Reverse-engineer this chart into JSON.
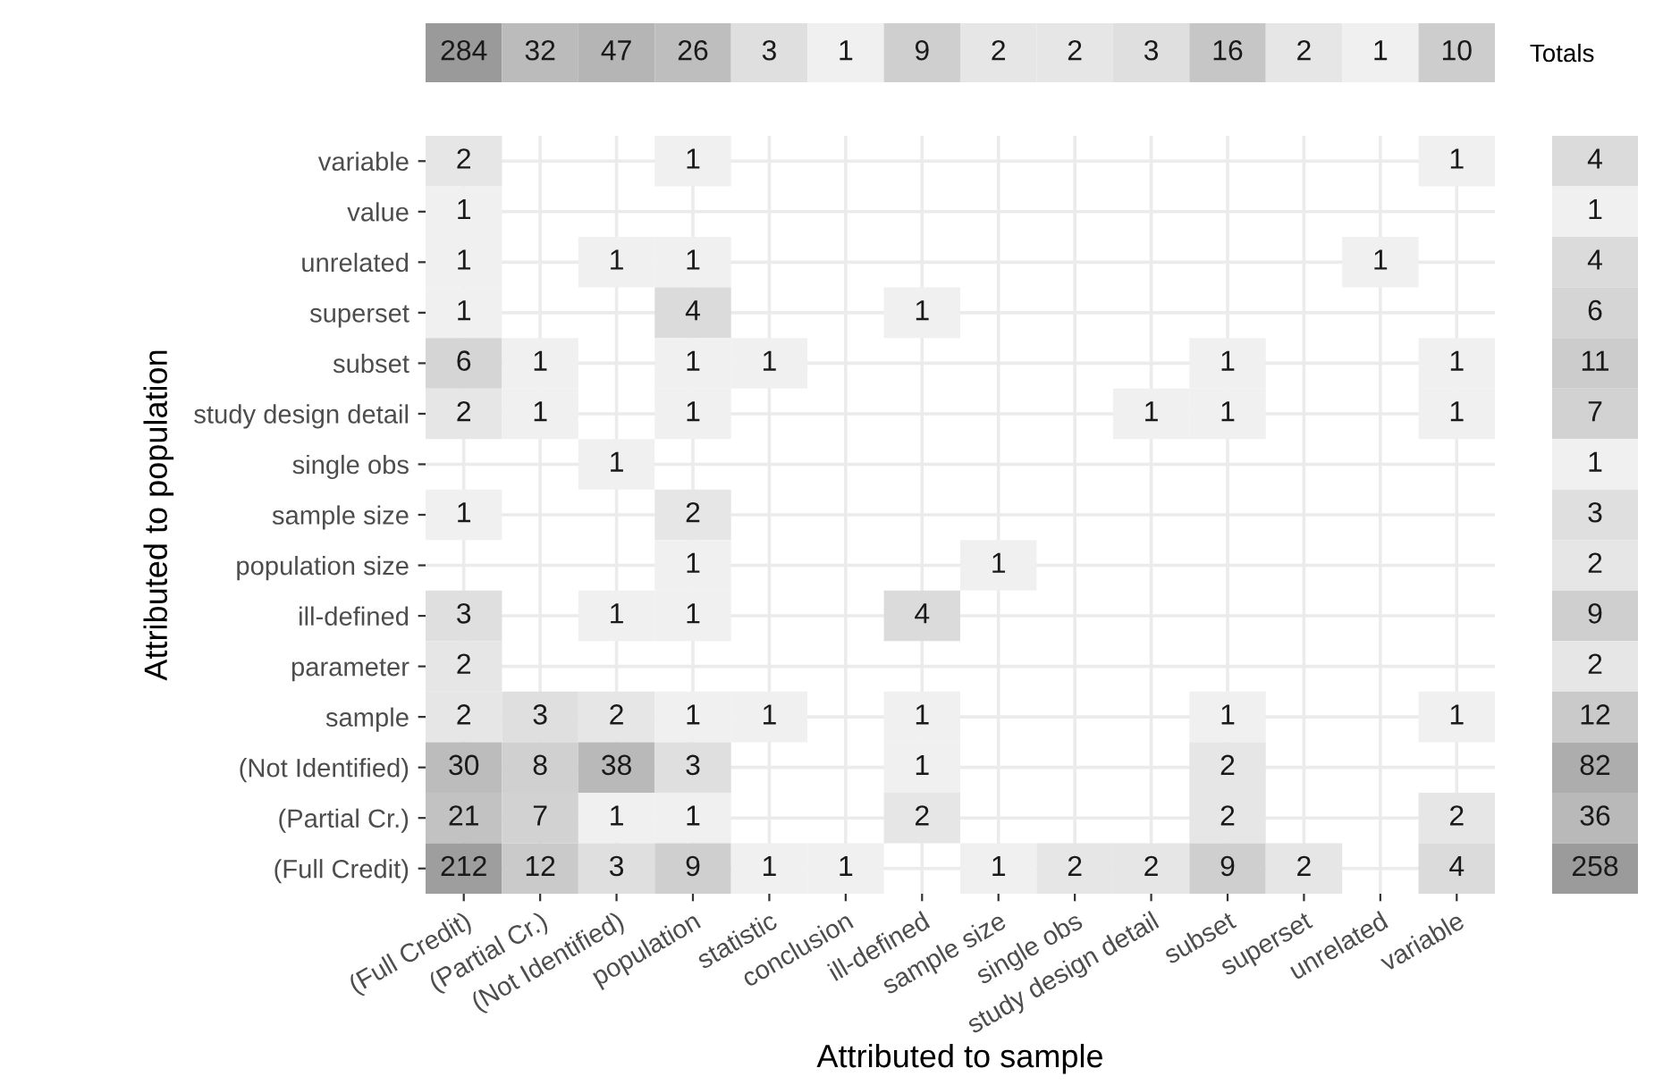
{
  "chart_data": [
    {
      "type": "heatmap",
      "xlabel": "Attributed to sample",
      "ylabel": "Attributed to population",
      "grid": true,
      "data_labels": true,
      "categories": [
        "(Full Credit)",
        "(Partial Cr.)",
        "(Not Identified)",
        "population",
        "statistic",
        "conclusion",
        "ill-defined",
        "sample size",
        "single obs",
        "study design detail",
        "subset",
        "superset",
        "unrelated",
        "variable"
      ],
      "y_categories": [
        "variable",
        "value",
        "unrelated",
        "superset",
        "subset",
        "study design detail",
        "single obs",
        "sample size",
        "population size",
        "ill-defined",
        "parameter",
        "sample",
        "(Not Identified)",
        "(Partial Cr.)",
        "(Full Credit)"
      ],
      "cells": [
        [
          2,
          null,
          null,
          1,
          null,
          null,
          null,
          null,
          null,
          null,
          null,
          null,
          null,
          1
        ],
        [
          1,
          null,
          null,
          null,
          null,
          null,
          null,
          null,
          null,
          null,
          null,
          null,
          null,
          null
        ],
        [
          1,
          null,
          1,
          1,
          null,
          null,
          null,
          null,
          null,
          null,
          null,
          null,
          1,
          null
        ],
        [
          1,
          null,
          null,
          4,
          null,
          null,
          1,
          null,
          null,
          null,
          null,
          null,
          null,
          null
        ],
        [
          6,
          1,
          null,
          1,
          1,
          null,
          null,
          null,
          null,
          null,
          1,
          null,
          null,
          1
        ],
        [
          2,
          1,
          null,
          1,
          null,
          null,
          null,
          null,
          null,
          1,
          1,
          null,
          null,
          1
        ],
        [
          null,
          null,
          1,
          null,
          null,
          null,
          null,
          null,
          null,
          null,
          null,
          null,
          null,
          null
        ],
        [
          1,
          null,
          null,
          2,
          null,
          null,
          null,
          null,
          null,
          null,
          null,
          null,
          null,
          null
        ],
        [
          null,
          null,
          null,
          1,
          null,
          null,
          null,
          1,
          null,
          null,
          null,
          null,
          null,
          null
        ],
        [
          3,
          null,
          1,
          1,
          null,
          null,
          4,
          null,
          null,
          null,
          null,
          null,
          null,
          null
        ],
        [
          2,
          null,
          null,
          null,
          null,
          null,
          null,
          null,
          null,
          null,
          null,
          null,
          null,
          null
        ],
        [
          2,
          3,
          2,
          1,
          1,
          null,
          1,
          null,
          null,
          null,
          1,
          null,
          null,
          1
        ],
        [
          30,
          8,
          38,
          3,
          null,
          null,
          1,
          null,
          null,
          null,
          2,
          null,
          null,
          null
        ],
        [
          21,
          7,
          1,
          1,
          null,
          null,
          2,
          null,
          null,
          null,
          2,
          null,
          null,
          2
        ],
        [
          212,
          12,
          3,
          9,
          1,
          1,
          null,
          1,
          2,
          2,
          9,
          2,
          null,
          4
        ]
      ]
    },
    {
      "type": "heatmap",
      "data_labels": true,
      "categories": [
        null,
        null,
        null,
        null,
        null,
        null,
        null,
        null,
        null,
        null,
        null,
        null,
        null,
        null
      ],
      "y_categories": [
        null
      ],
      "y2_categories": [
        "Totals"
      ],
      "cells": [
        [
          284,
          32,
          47,
          26,
          3,
          1,
          9,
          2,
          2,
          3,
          16,
          2,
          1,
          10
        ]
      ]
    },
    {
      "type": "heatmap",
      "data_labels": true,
      "categories": [
        null
      ],
      "y_categories": [
        null,
        null,
        null,
        null,
        null,
        null,
        null,
        null,
        null,
        null,
        null,
        null,
        null,
        null,
        null
      ],
      "cells": [
        [
          4
        ],
        [
          1
        ],
        [
          4
        ],
        [
          6
        ],
        [
          11
        ],
        [
          7
        ],
        [
          1
        ],
        [
          3
        ],
        [
          2
        ],
        [
          9
        ],
        [
          2
        ],
        [
          12
        ],
        [
          82
        ],
        [
          36
        ],
        [
          258
        ]
      ]
    }
  ]
}
